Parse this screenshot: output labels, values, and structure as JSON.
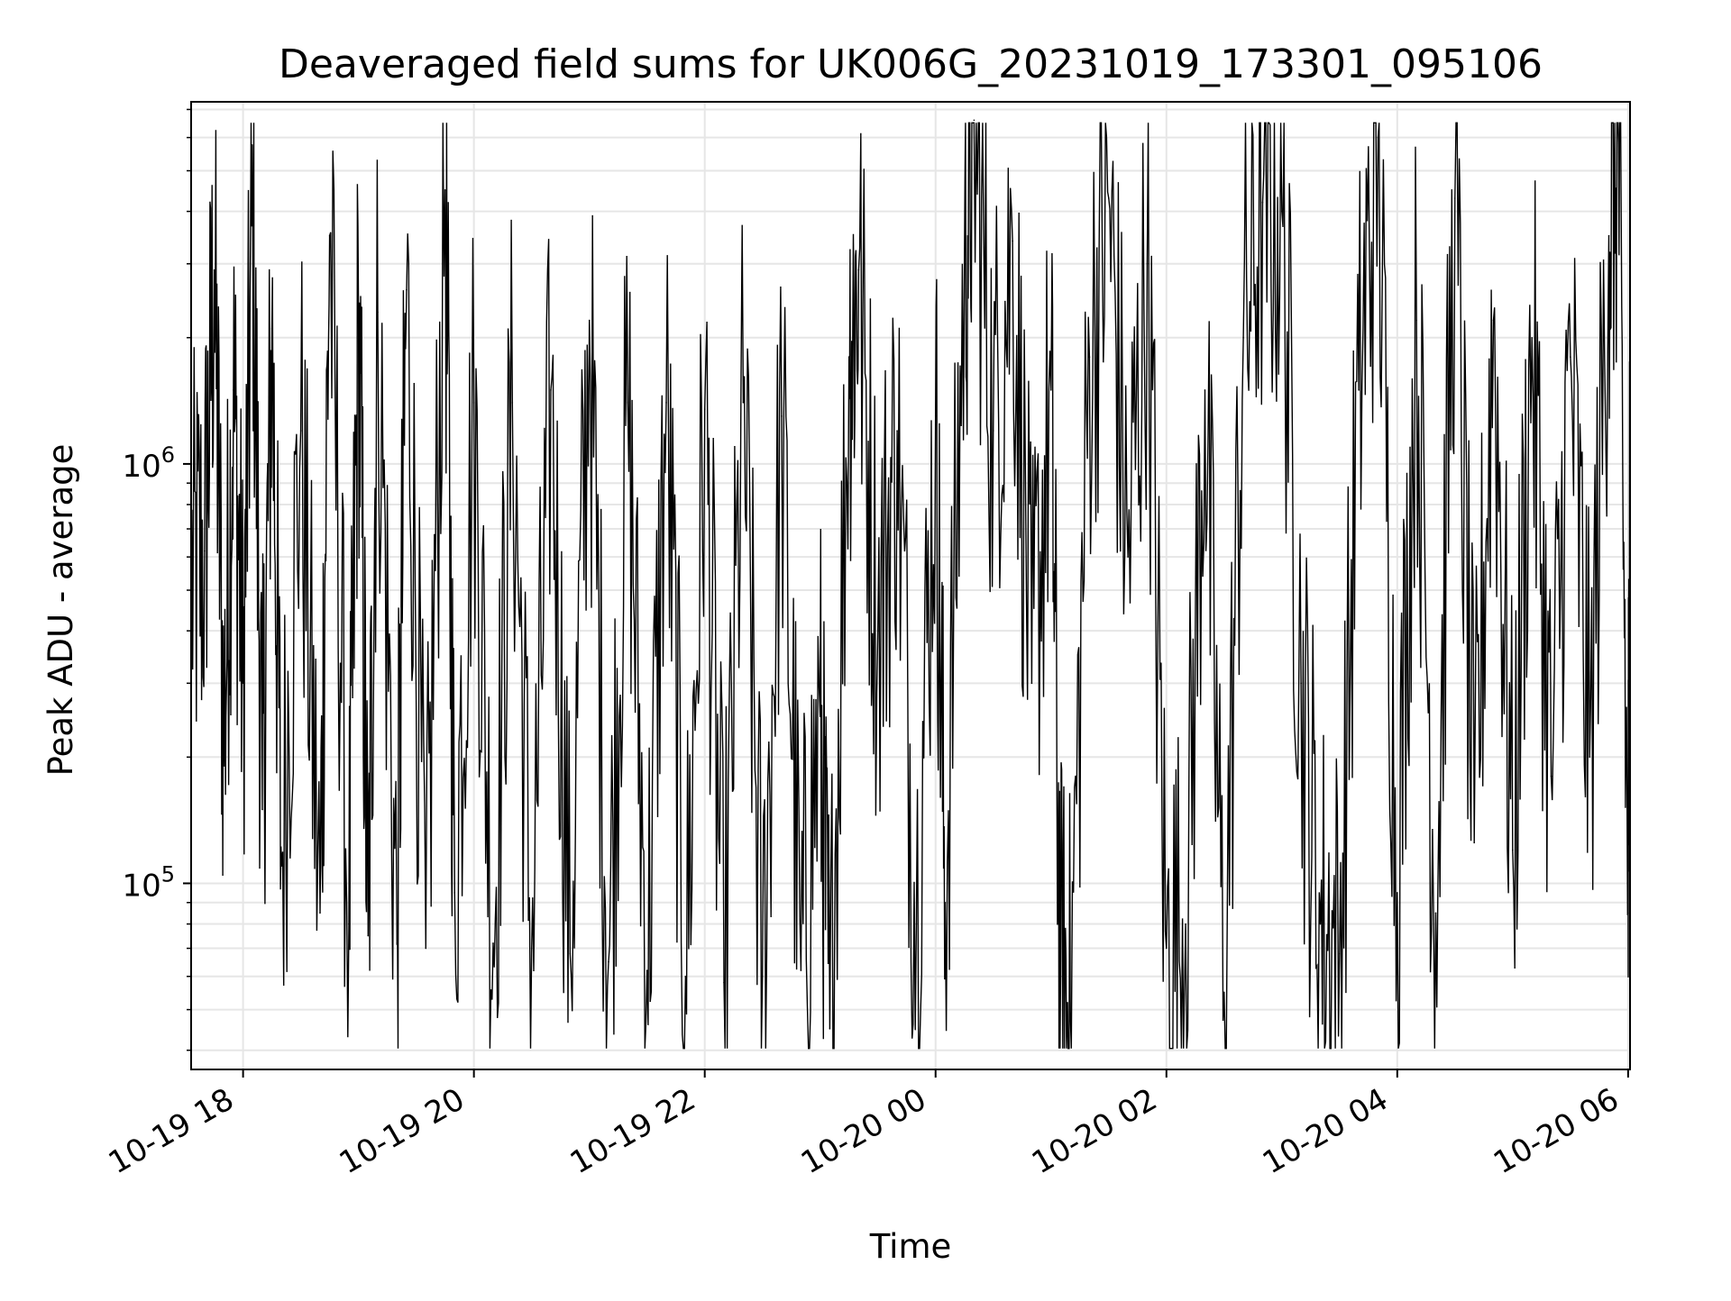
{
  "chart_data": {
    "type": "line",
    "title": "Deaveraged field sums for UK006G_20231019_173301_095106",
    "xlabel": "Time",
    "ylabel": "Peak ADU - average",
    "x_tick_labels": [
      "10-19 18",
      "10-19 20",
      "10-19 22",
      "10-20 00",
      "10-20 02",
      "10-20 04",
      "10-20 06"
    ],
    "x_ticks": [
      "2023-10-19 18:00",
      "2023-10-19 20:00",
      "2023-10-19 22:00",
      "2023-10-20 00:00",
      "2023-10-20 02:00",
      "2023-10-20 04:00",
      "2023-10-20 06:00"
    ],
    "xlim": [
      "2023-10-19 17:33",
      "2023-10-20 06:01"
    ],
    "y_scale": "log",
    "ylim": [
      36000,
      7300000
    ],
    "y_tick_labels": [
      {
        "base": "10",
        "exp": "5",
        "value": 100000
      },
      {
        "base": "10",
        "exp": "6",
        "value": 1000000
      }
    ],
    "grid": true,
    "line_color": "#000000",
    "grid_color": "#e6e6e6",
    "series": [
      {
        "points": [
          [
            "2023-10-19 17:33",
            520000
          ],
          [
            "2023-10-19 17:40",
            620000
          ],
          [
            "2023-10-19 17:45",
            2900000
          ],
          [
            "2023-10-19 17:50",
            220000
          ],
          [
            "2023-10-19 17:55",
            1500000
          ],
          [
            "2023-10-19 18:00",
            300000
          ],
          [
            "2023-10-19 18:05",
            4100000
          ],
          [
            "2023-10-19 18:10",
            150000
          ],
          [
            "2023-10-19 18:15",
            2100000
          ],
          [
            "2023-10-19 18:20",
            110000
          ],
          [
            "2023-10-19 18:30",
            1200000
          ],
          [
            "2023-10-19 18:40",
            85000
          ],
          [
            "2023-10-19 18:45",
            3500000
          ],
          [
            "2023-10-19 18:55",
            80000
          ],
          [
            "2023-10-19 19:00",
            2400000
          ],
          [
            "2023-10-19 19:05",
            75000
          ],
          [
            "2023-10-19 19:10",
            2300000
          ],
          [
            "2023-10-19 19:20",
            72000
          ],
          [
            "2023-10-19 19:25",
            2600000
          ],
          [
            "2023-10-19 19:35",
            70000
          ],
          [
            "2023-10-19 19:45",
            4500000
          ],
          [
            "2023-10-19 19:50",
            95000
          ],
          [
            "2023-10-19 20:00",
            1400000
          ],
          [
            "2023-10-19 20:10",
            72000
          ],
          [
            "2023-10-19 20:20",
            1400000
          ],
          [
            "2023-10-19 20:30",
            70000
          ],
          [
            "2023-10-19 20:40",
            1500000
          ],
          [
            "2023-10-19 20:50",
            68000
          ],
          [
            "2023-10-19 21:00",
            2200000
          ],
          [
            "2023-10-19 21:10",
            65000
          ],
          [
            "2023-10-19 21:20",
            1400000
          ],
          [
            "2023-10-19 21:30",
            62000
          ],
          [
            "2023-10-19 21:40",
            1400000
          ],
          [
            "2023-10-19 21:50",
            60000
          ],
          [
            "2023-10-19 22:00",
            1350000
          ],
          [
            "2023-10-19 22:10",
            58000
          ],
          [
            "2023-10-19 22:20",
            1400000
          ],
          [
            "2023-10-19 22:30",
            60000
          ],
          [
            "2023-10-19 22:40",
            1300000
          ],
          [
            "2023-10-19 22:50",
            62000
          ],
          [
            "2023-10-19 23:00",
            250000
          ],
          [
            "2023-10-19 23:05",
            45000
          ],
          [
            "2023-10-19 23:15",
            1800000
          ],
          [
            "2023-10-19 23:20",
            2900000
          ],
          [
            "2023-10-19 23:30",
            400000
          ],
          [
            "2023-10-19 23:40",
            1200000
          ],
          [
            "2023-10-19 23:50",
            80000
          ],
          [
            "2023-10-20 00:00",
            1300000
          ],
          [
            "2023-10-20 00:05",
            90000
          ],
          [
            "2023-10-20 00:15",
            3000000
          ],
          [
            "2023-10-20 00:20",
            6600000
          ],
          [
            "2023-10-20 00:30",
            1200000
          ],
          [
            "2023-10-20 00:40",
            3400000
          ],
          [
            "2023-10-20 00:50",
            300000
          ],
          [
            "2023-10-20 01:00",
            1500000
          ],
          [
            "2023-10-20 01:05",
            60000
          ],
          [
            "2023-10-20 01:10",
            49000
          ],
          [
            "2023-10-20 01:20",
            1800000
          ],
          [
            "2023-10-20 01:30",
            4300000
          ],
          [
            "2023-10-20 01:40",
            600000
          ],
          [
            "2023-10-20 01:50",
            3000000
          ],
          [
            "2023-10-20 02:00",
            70000
          ],
          [
            "2023-10-20 02:10",
            80000
          ],
          [
            "2023-10-20 02:20",
            1500000
          ],
          [
            "2023-10-20 02:30",
            55000
          ],
          [
            "2023-10-20 02:40",
            2000000
          ],
          [
            "2023-10-20 02:50",
            4200000
          ],
          [
            "2023-10-20 03:00",
            4000000
          ],
          [
            "2023-10-20 03:10",
            300000
          ],
          [
            "2023-10-20 03:20",
            80000
          ],
          [
            "2023-10-20 03:30",
            68000
          ],
          [
            "2023-10-20 03:40",
            1500000
          ],
          [
            "2023-10-20 03:50",
            6000000
          ],
          [
            "2023-10-20 04:00",
            95000
          ],
          [
            "2023-10-20 04:10",
            2200000
          ],
          [
            "2023-10-20 04:20",
            85000
          ],
          [
            "2023-10-20 04:30",
            4300000
          ],
          [
            "2023-10-20 04:40",
            125000
          ],
          [
            "2023-10-20 04:50",
            2200000
          ],
          [
            "2023-10-20 05:00",
            120000
          ],
          [
            "2023-10-20 05:10",
            2000000
          ],
          [
            "2023-10-20 05:20",
            180000
          ],
          [
            "2023-10-20 05:30",
            1800000
          ],
          [
            "2023-10-20 05:40",
            200000
          ],
          [
            "2023-10-20 05:50",
            3500000
          ],
          [
            "2023-10-20 05:55",
            5800000
          ],
          [
            "2023-10-20 06:00",
            85000
          ],
          [
            "2023-10-20 06:01",
            2200000
          ]
        ]
      }
    ]
  }
}
